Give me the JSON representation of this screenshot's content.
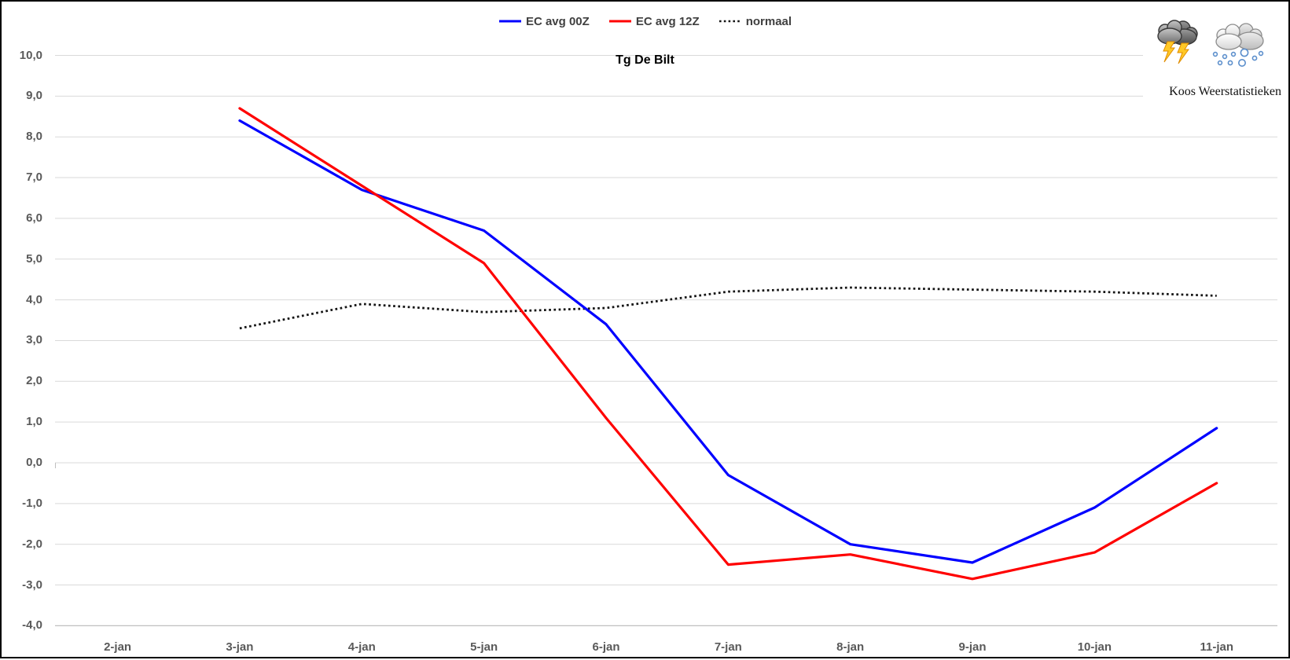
{
  "chart_data": {
    "type": "line",
    "title": "Tg De Bilt",
    "categories": [
      "2-jan",
      "3-jan",
      "4-jan",
      "5-jan",
      "6-jan",
      "7-jan",
      "8-jan",
      "9-jan",
      "10-jan",
      "11-jan"
    ],
    "series": [
      {
        "name": "EC avg 00Z",
        "color": "#0000ff",
        "line_style": "solid",
        "values": [
          null,
          8.4,
          6.7,
          5.7,
          3.4,
          -0.3,
          -2.0,
          -2.45,
          -1.1,
          0.85
        ]
      },
      {
        "name": "EC avg 12Z",
        "color": "#ff0000",
        "line_style": "solid",
        "values": [
          null,
          8.7,
          6.8,
          4.9,
          1.1,
          -2.5,
          -2.25,
          -2.85,
          -2.2,
          -0.5
        ]
      },
      {
        "name": "normaal",
        "color": "#141414",
        "line_style": "dotted",
        "values": [
          null,
          3.3,
          3.9,
          3.7,
          3.8,
          4.2,
          4.3,
          4.25,
          4.2,
          4.1
        ]
      }
    ],
    "ylim": [
      -4,
      10
    ],
    "ytick_step": 1,
    "ytick_labels": [
      "10,0",
      "9,0",
      "8,0",
      "7,0",
      "6,0",
      "5,0",
      "4,0",
      "3,0",
      "2,0",
      "1,0",
      "0,0",
      "-1,0",
      "-2,0",
      "-3,0",
      "-4,0"
    ],
    "xlabel": "",
    "ylabel": "",
    "grid": "horizontal",
    "legend_position": "top-center",
    "decimal_separator": ","
  },
  "branding": {
    "name": "Koos Weerstatistieken",
    "icons": [
      "storm-cloud-lightning",
      "snow-cloud-hail"
    ]
  },
  "colors": {
    "gridline": "#d9d9d9",
    "axis_line": "#bfbfbf",
    "tick_label": "#595959",
    "legend_text": "#404040",
    "title_text": "#000000"
  }
}
